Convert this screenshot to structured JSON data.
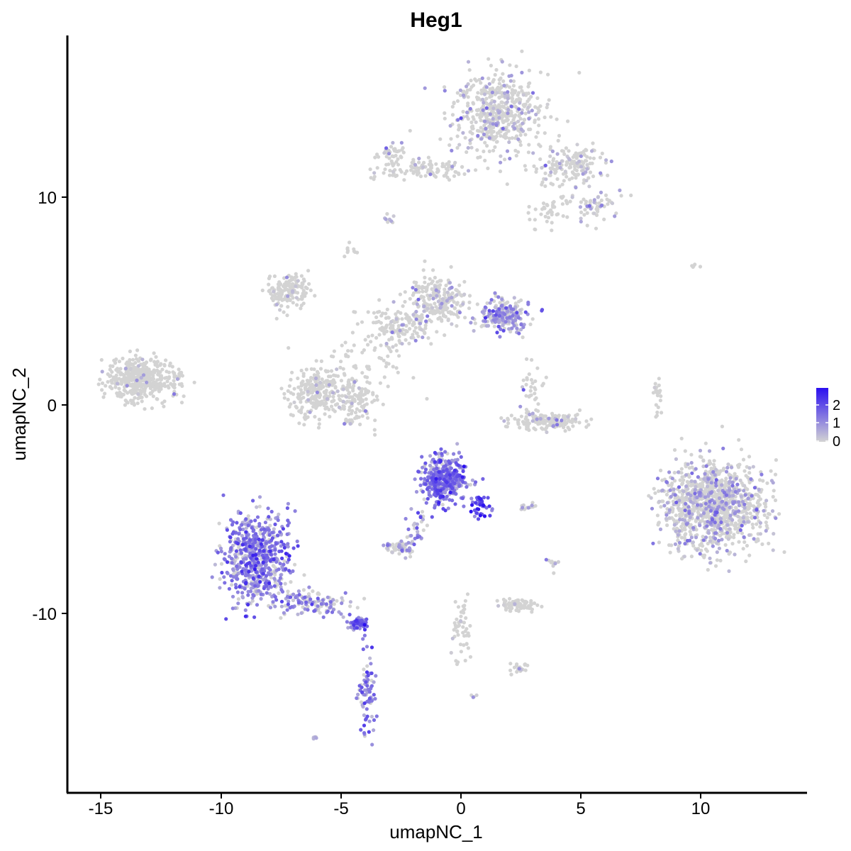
{
  "chart_data": {
    "type": "scatter",
    "title": "Heg1",
    "xlabel": "umapNC_1",
    "ylabel": "umapNC_2",
    "xlim": [
      -16.5,
      14.5
    ],
    "ylim": [
      -18.5,
      17.5
    ],
    "x_ticks": [
      -15,
      -10,
      -5,
      0,
      5,
      10
    ],
    "x_tick_labels": [
      "-15",
      "-10",
      "-5",
      "0",
      "5",
      "10"
    ],
    "y_ticks": [
      -10,
      0,
      10
    ],
    "y_tick_labels": [
      "-10",
      "0",
      "10"
    ],
    "grid": false,
    "legend": {
      "placement": "right",
      "type": "colorbar",
      "ticks": [
        0,
        1,
        2
      ],
      "tick_labels": [
        "2",
        "1",
        "0"
      ],
      "low_color": "#d3d3d3",
      "high_color": "#2a0ff0",
      "min": 0,
      "max": 2.3
    },
    "clusters": [
      {
        "cx": 1.5,
        "cy": 14.0,
        "sx": 1.2,
        "sy": 1.3,
        "n": 520,
        "expr": 0.25
      },
      {
        "cx": 4.5,
        "cy": 11.5,
        "sx": 1.0,
        "sy": 0.7,
        "n": 160,
        "expr": 0.2
      },
      {
        "cx": 5.5,
        "cy": 9.6,
        "sx": 0.6,
        "sy": 0.5,
        "n": 60,
        "expr": 0.45
      },
      {
        "cx": -1.5,
        "cy": 11.3,
        "sx": 1.4,
        "sy": 0.3,
        "n": 110,
        "expr": 0.1
      },
      {
        "cx": -2.8,
        "cy": 12.0,
        "sx": 0.4,
        "sy": 0.4,
        "n": 40,
        "expr": 0.2
      },
      {
        "cx": 3.8,
        "cy": 9.5,
        "sx": 0.5,
        "sy": 0.6,
        "n": 40,
        "expr": 0.05
      },
      {
        "cx": -13.5,
        "cy": 1.2,
        "sx": 0.8,
        "sy": 0.7,
        "n": 380,
        "expr": 0.0
      },
      {
        "cx": -12.0,
        "cy": 1.2,
        "sx": 0.5,
        "sy": 0.8,
        "n": 50,
        "expr": 0.0
      },
      {
        "cx": -7.2,
        "cy": 5.5,
        "sx": 0.6,
        "sy": 0.6,
        "n": 150,
        "expr": 0.05
      },
      {
        "cx": -6.0,
        "cy": 0.6,
        "sx": 0.8,
        "sy": 0.8,
        "n": 260,
        "expr": 0.05
      },
      {
        "cx": -4.4,
        "cy": 0.2,
        "sx": 0.6,
        "sy": 0.9,
        "n": 120,
        "expr": 0.1
      },
      {
        "cx": -0.9,
        "cy": 5.0,
        "sx": 0.8,
        "sy": 0.8,
        "n": 220,
        "expr": 0.25
      },
      {
        "cx": 1.8,
        "cy": 4.3,
        "sx": 0.7,
        "sy": 0.5,
        "n": 210,
        "expr": 0.65
      },
      {
        "cx": -2.5,
        "cy": 3.8,
        "sx": 1.0,
        "sy": 0.6,
        "n": 120,
        "expr": 0.1
      },
      {
        "cx": -3.5,
        "cy": 2.5,
        "sx": 1.2,
        "sy": 1.3,
        "n": 70,
        "expr": 0.05
      },
      {
        "cx": 3.5,
        "cy": -0.8,
        "sx": 1.0,
        "sy": 0.3,
        "n": 170,
        "expr": 0.1
      },
      {
        "cx": 3.0,
        "cy": 1.0,
        "sx": 0.3,
        "sy": 0.7,
        "n": 30,
        "expr": 0.25
      },
      {
        "cx": 10.5,
        "cy": -4.8,
        "sx": 1.4,
        "sy": 1.4,
        "n": 1150,
        "expr": 0.35
      },
      {
        "cx": 8.2,
        "cy": 0.2,
        "sx": 0.15,
        "sy": 0.8,
        "n": 20,
        "expr": 0.0
      },
      {
        "cx": -8.5,
        "cy": -7.3,
        "sx": 0.9,
        "sy": 1.4,
        "n": 650,
        "expr": 0.9
      },
      {
        "cx": -6.2,
        "cy": -9.5,
        "sx": 1.2,
        "sy": 0.4,
        "n": 120,
        "expr": 0.7
      },
      {
        "cx": -4.3,
        "cy": -10.5,
        "sx": 0.3,
        "sy": 0.2,
        "n": 60,
        "expr": 1.2
      },
      {
        "cx": -3.9,
        "cy": -13.8,
        "sx": 0.25,
        "sy": 1.3,
        "n": 80,
        "expr": 0.9
      },
      {
        "cx": -0.7,
        "cy": -3.6,
        "sx": 0.6,
        "sy": 0.7,
        "n": 420,
        "expr": 1.0
      },
      {
        "cx": 0.8,
        "cy": -4.9,
        "sx": 0.3,
        "sy": 0.4,
        "n": 40,
        "expr": 1.5
      },
      {
        "cx": -1.8,
        "cy": -5.8,
        "sx": 0.3,
        "sy": 0.6,
        "n": 30,
        "expr": 0.8
      },
      {
        "cx": -2.5,
        "cy": -6.9,
        "sx": 0.4,
        "sy": 0.2,
        "n": 60,
        "expr": 0.45
      },
      {
        "cx": 2.4,
        "cy": -9.6,
        "sx": 0.5,
        "sy": 0.2,
        "n": 90,
        "expr": 0.0
      },
      {
        "cx": 0.0,
        "cy": -11.0,
        "sx": 0.3,
        "sy": 1.1,
        "n": 50,
        "expr": 0.05
      },
      {
        "cx": 2.4,
        "cy": -12.6,
        "sx": 0.3,
        "sy": 0.2,
        "n": 20,
        "expr": 0.2
      },
      {
        "cx": 2.8,
        "cy": -4.9,
        "sx": 0.3,
        "sy": 0.1,
        "n": 15,
        "expr": 0.45
      },
      {
        "cx": 3.8,
        "cy": -7.7,
        "sx": 0.2,
        "sy": 0.4,
        "n": 10,
        "expr": 0.2
      },
      {
        "cx": -3.0,
        "cy": 8.9,
        "sx": 0.15,
        "sy": 0.15,
        "n": 8,
        "expr": 0.4
      },
      {
        "cx": -4.6,
        "cy": 7.4,
        "sx": 0.2,
        "sy": 0.2,
        "n": 10,
        "expr": 0.2
      },
      {
        "cx": -6.1,
        "cy": -16.0,
        "sx": 0.1,
        "sy": 0.1,
        "n": 5,
        "expr": 0.4
      },
      {
        "cx": 0.6,
        "cy": -14.0,
        "sx": 0.08,
        "sy": 0.08,
        "n": 4,
        "expr": 0.5
      },
      {
        "cx": 9.7,
        "cy": 6.7,
        "sx": 0.2,
        "sy": 0.1,
        "n": 5,
        "expr": 0.0
      }
    ]
  }
}
